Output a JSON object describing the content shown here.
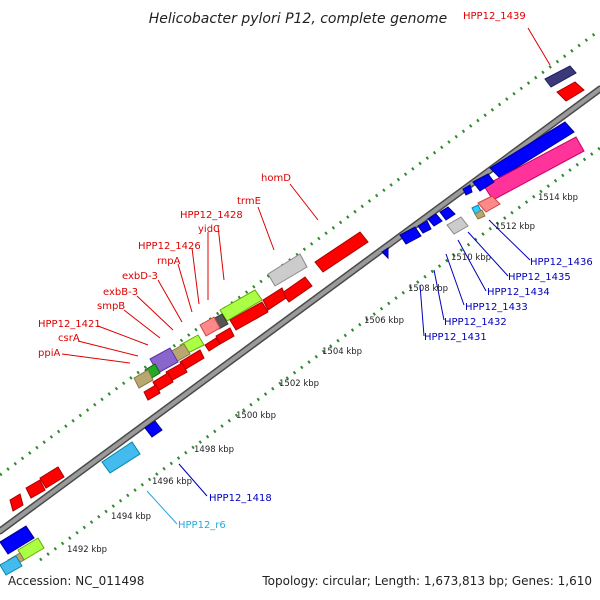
{
  "title": "Helicobacter pylori P12, complete genome",
  "footer": {
    "accession": "Accession: NC_011498",
    "summary": "Topology: circular; Length: 1,673,813 bp; Genes: 1,610"
  },
  "colors": {
    "backbone": "#9a9a9a",
    "tick": "#2e8b2e",
    "label_red": "#dd0000",
    "label_blue": "#0000bb",
    "label_cyan": "#22aadd"
  },
  "kbp_ticks": [
    {
      "label": "1492 kbp"
    },
    {
      "label": "1494 kbp"
    },
    {
      "label": "1496 kbp"
    },
    {
      "label": "1498 kbp"
    },
    {
      "label": "1500 kbp"
    },
    {
      "label": "1502 kbp"
    },
    {
      "label": "1504 kbp"
    },
    {
      "label": "1506 kbp"
    },
    {
      "label": "1508 kbp"
    },
    {
      "label": "1510 kbp"
    },
    {
      "label": "1512 kbp"
    },
    {
      "label": "1514 kbp"
    }
  ],
  "gene_labels": {
    "HPP12_1439": "HPP12_1439",
    "homD": "homD",
    "trmE": "trmE",
    "HPP12_1428": "HPP12_1428",
    "yidC": "yidC",
    "HPP12_1426": "HPP12_1426",
    "rnpA": "rnpA",
    "exbD_3": "exbD-3",
    "exbB_3": "exbB-3",
    "smpB": "smpB",
    "HPP12_1421": "HPP12_1421",
    "csrA": "csrA",
    "ppiA": "ppiA",
    "HPP12_1436": "HPP12_1436",
    "HPP12_1435": "HPP12_1435",
    "HPP12_1434": "HPP12_1434",
    "HPP12_1433": "HPP12_1433",
    "HPP12_1432": "HPP12_1432",
    "HPP12_1431": "HPP12_1431",
    "HPP12_1418": "HPP12_1418",
    "HPP12_r6": "HPP12_r6"
  }
}
